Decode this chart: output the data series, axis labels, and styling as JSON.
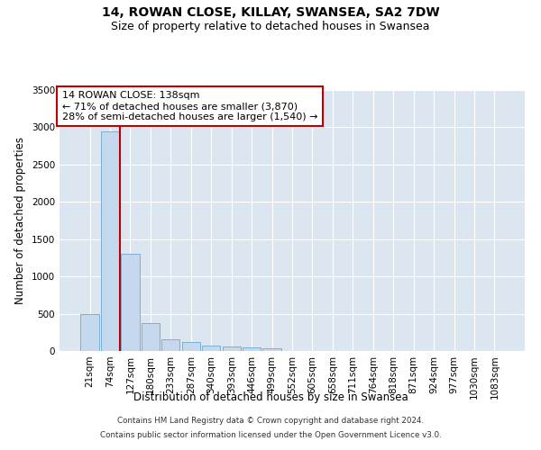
{
  "title": "14, ROWAN CLOSE, KILLAY, SWANSEA, SA2 7DW",
  "subtitle": "Size of property relative to detached houses in Swansea",
  "xlabel": "Distribution of detached houses by size in Swansea",
  "ylabel": "Number of detached properties",
  "categories": [
    "21sqm",
    "74sqm",
    "127sqm",
    "180sqm",
    "233sqm",
    "287sqm",
    "340sqm",
    "393sqm",
    "446sqm",
    "499sqm",
    "552sqm",
    "605sqm",
    "658sqm",
    "711sqm",
    "764sqm",
    "818sqm",
    "871sqm",
    "924sqm",
    "977sqm",
    "1030sqm",
    "1083sqm"
  ],
  "values": [
    500,
    2950,
    1300,
    380,
    155,
    120,
    70,
    60,
    45,
    40,
    0,
    0,
    0,
    0,
    0,
    0,
    0,
    0,
    0,
    0,
    0
  ],
  "bar_color": "#c5d8ed",
  "bar_edge_color": "#7bafd4",
  "background_color": "#dce6f1",
  "grid_color": "#ffffff",
  "ylim": [
    0,
    3500
  ],
  "yticks": [
    0,
    500,
    1000,
    1500,
    2000,
    2500,
    3000,
    3500
  ],
  "vline_color": "#c00000",
  "vline_pos": 1.5,
  "annotation_text": "14 ROWAN CLOSE: 138sqm\n← 71% of detached houses are smaller (3,870)\n28% of semi-detached houses are larger (1,540) →",
  "annotation_box_edge_color": "#c00000",
  "annotation_fontsize": 8.0,
  "footer_line1": "Contains HM Land Registry data © Crown copyright and database right 2024.",
  "footer_line2": "Contains public sector information licensed under the Open Government Licence v3.0.",
  "title_fontsize": 10,
  "subtitle_fontsize": 9,
  "xlabel_fontsize": 8.5,
  "ylabel_fontsize": 8.5,
  "tick_fontsize": 7.5
}
